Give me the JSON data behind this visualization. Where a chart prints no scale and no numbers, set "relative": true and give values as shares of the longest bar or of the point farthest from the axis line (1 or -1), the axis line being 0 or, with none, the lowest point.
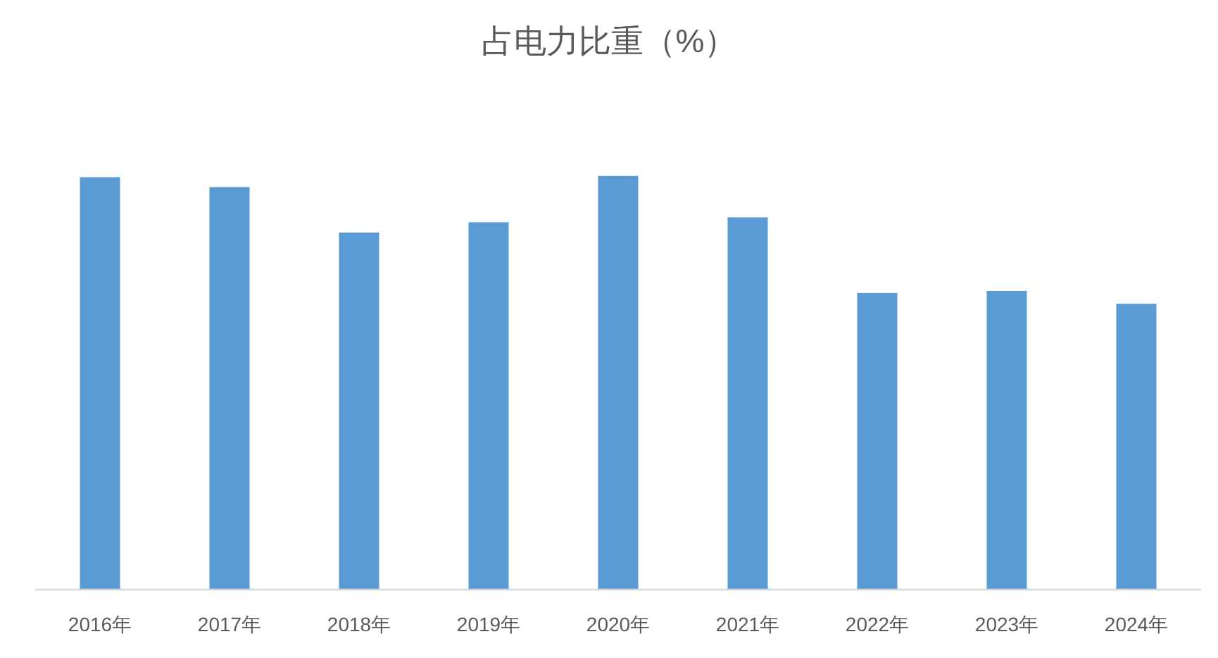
{
  "chart_data": {
    "type": "bar",
    "title": "占电力比重（%）",
    "categories": [
      "2016年",
      "2017年",
      "2018年",
      "2019年",
      "2020年",
      "2021年",
      "2022年",
      "2023年",
      "2024年"
    ],
    "values": [
      0.997,
      0.973,
      0.863,
      0.888,
      1,
      0.9,
      0.717,
      0.722,
      0.691
    ],
    "color": "#5b9bd5",
    "relative": true
  }
}
